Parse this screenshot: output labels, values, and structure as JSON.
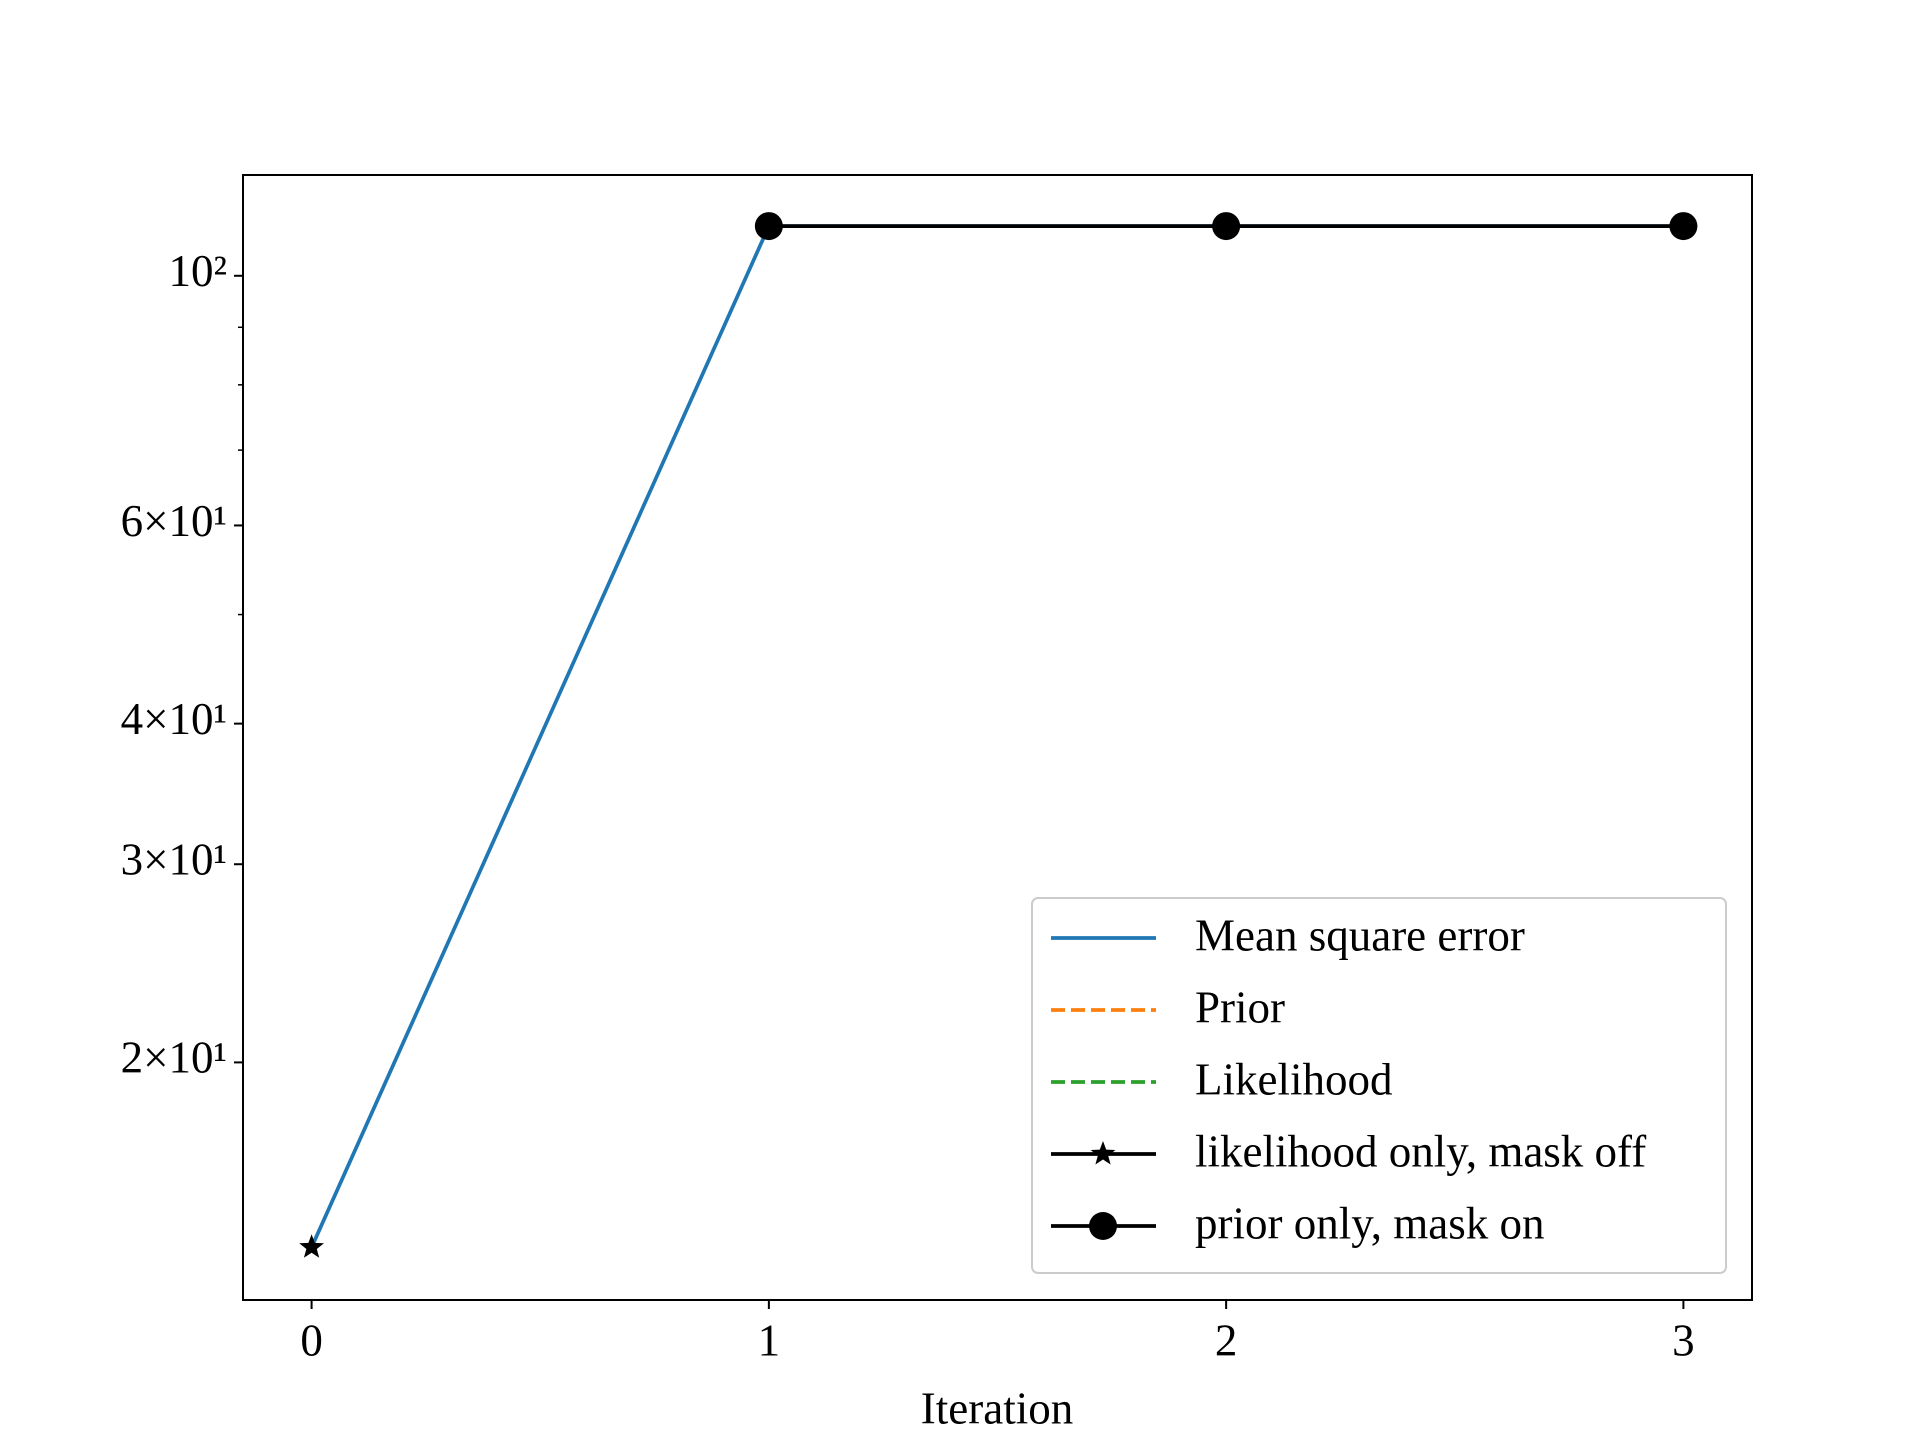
{
  "chart_data": {
    "type": "line",
    "x_label": "Iteration",
    "x": [
      0,
      1,
      2,
      3
    ],
    "xlim": [
      -0.15,
      3.15
    ],
    "xticks": [
      0,
      1,
      2,
      3
    ],
    "ylog": true,
    "ylim": [
      12.3,
      122.9
    ],
    "yticks": [
      {
        "value": 20,
        "label": "2×10¹"
      },
      {
        "value": 30,
        "label": "3×10¹"
      },
      {
        "value": 40,
        "label": "4×10¹"
      },
      {
        "value": 60,
        "label": "6×10¹"
      },
      {
        "value": 100,
        "label": "10²"
      }
    ],
    "yminor_ticks": [
      50,
      70,
      80,
      90
    ],
    "legend": "lower right",
    "series": [
      {
        "name": "Mean square error",
        "color": "#1f77b4",
        "values": [
          13.7,
          110.7,
          110.7,
          110.7
        ]
      },
      {
        "name": "Prior",
        "color": "#ff7f0e",
        "dash": true,
        "values": [
          null,
          null,
          null,
          null
        ]
      },
      {
        "name": "Likelihood",
        "color": "#2ca02c",
        "dash": true,
        "values": [
          null,
          null,
          null,
          null
        ]
      },
      {
        "name": "likelihood only, mask off",
        "color": "#000000",
        "marker": "star",
        "values": [
          13.7,
          null,
          null,
          null
        ]
      },
      {
        "name": "prior only, mask on",
        "color": "#000000",
        "marker": "circle",
        "values": [
          null,
          110.7,
          110.7,
          110.7
        ]
      }
    ]
  }
}
